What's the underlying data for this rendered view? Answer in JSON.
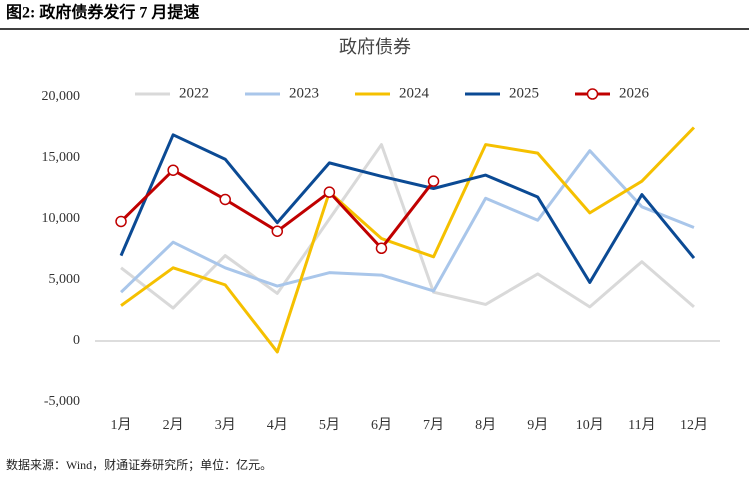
{
  "header": {
    "title": "图2: 政府债券发行 7 月提速"
  },
  "chart_data": {
    "type": "line",
    "title": "政府债券",
    "categories": [
      "1月",
      "2月",
      "3月",
      "4月",
      "5月",
      "6月",
      "7月",
      "8月",
      "9月",
      "10月",
      "11月",
      "12月"
    ],
    "series": [
      {
        "name": "2022",
        "color": "#d9d9d9",
        "values": [
          6000,
          2700,
          7000,
          3900,
          10000,
          16100,
          4000,
          3000,
          5500,
          2800,
          6500,
          2800
        ]
      },
      {
        "name": "2023",
        "color": "#a9c6ea",
        "values": [
          4000,
          8100,
          6000,
          4500,
          5600,
          5400,
          4100,
          11700,
          9900,
          15600,
          11000,
          9300
        ]
      },
      {
        "name": "2024",
        "color": "#f5c000",
        "values": [
          2900,
          6000,
          4600,
          -900,
          12200,
          8400,
          6900,
          16100,
          15400,
          10500,
          13100,
          17500
        ]
      },
      {
        "name": "2025",
        "color": "#0b4a94",
        "values": [
          7000,
          16900,
          14900,
          9700,
          14600,
          13500,
          12500,
          13600,
          11800,
          4800,
          12000,
          6800
        ]
      },
      {
        "name": "2026",
        "color": "#c00000",
        "markers": true,
        "values": [
          9800,
          14000,
          11600,
          9000,
          12200,
          7600,
          13100,
          null,
          null,
          null,
          null,
          null
        ]
      }
    ],
    "ylim": [
      -5000,
      20000
    ],
    "yticks": [
      {
        "value": 20000,
        "label": "20,000"
      },
      {
        "value": 15000,
        "label": "15,000"
      },
      {
        "value": 10000,
        "label": "10,000"
      },
      {
        "value": 5000,
        "label": "5,000"
      },
      0,
      {
        "value": -5000,
        "label": "-5,000"
      }
    ],
    "grid": false,
    "legend": "top"
  },
  "footer": {
    "source": "数据来源：Wind，财通证券研究所；单位：亿元。"
  }
}
